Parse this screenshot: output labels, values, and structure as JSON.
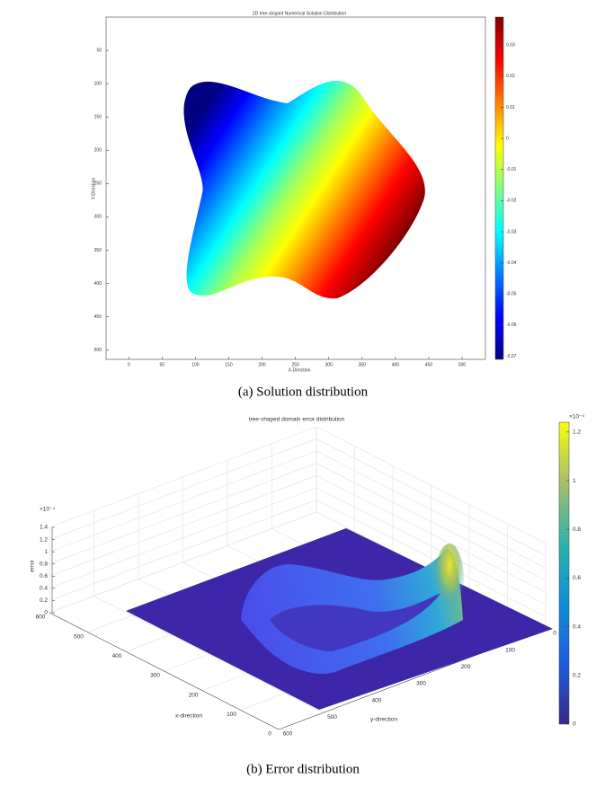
{
  "chart_data": [
    {
      "type": "image",
      "title": "2D tree-shaped Numerical Solution Distribution",
      "xlabel": "X-Direction",
      "ylabel": "Y-Direction",
      "xlim": [
        -34,
        535
      ],
      "ylim": [
        0,
        514
      ],
      "xticks": [
        0,
        50,
        100,
        150,
        200,
        250,
        300,
        350,
        400,
        450,
        500
      ],
      "yticks": [
        50,
        100,
        150,
        200,
        250,
        300,
        350,
        400,
        450,
        500
      ],
      "colorbar": {
        "colormap": "jet",
        "lim": [
          -0.071,
          0.039
        ],
        "ticks": [
          0.03,
          0.02,
          0.01,
          0,
          -0.01,
          -0.02,
          -0.03,
          -0.04,
          -0.05,
          -0.06,
          -0.07
        ]
      },
      "caption": "(a) Solution distribution"
    },
    {
      "type": "surface",
      "title": "tree-shaped domain error distribution",
      "xlabel": "x-direction",
      "ylabel": "y-direction",
      "zlabel": "error",
      "xlim": [
        0,
        600
      ],
      "ylim": [
        0,
        600
      ],
      "zlim": [
        0,
        1.4
      ],
      "xticks": [
        0,
        100,
        200,
        300,
        400,
        500,
        600
      ],
      "yticks": [
        0,
        100,
        200,
        300,
        400,
        500,
        600
      ],
      "zticks": [
        0,
        0.2,
        0.4,
        0.6,
        0.8,
        1,
        1.2,
        1.4
      ],
      "zexponent": "×10⁻⁴",
      "grid": true,
      "colorbar": {
        "colormap": "parula",
        "lim": [
          0,
          1.24
        ],
        "ticks": [
          0,
          0.2,
          0.4,
          0.6,
          0.8,
          1,
          1.2
        ],
        "exponent": "×10⁻⁴"
      },
      "caption": "(b) Error distribution"
    }
  ]
}
